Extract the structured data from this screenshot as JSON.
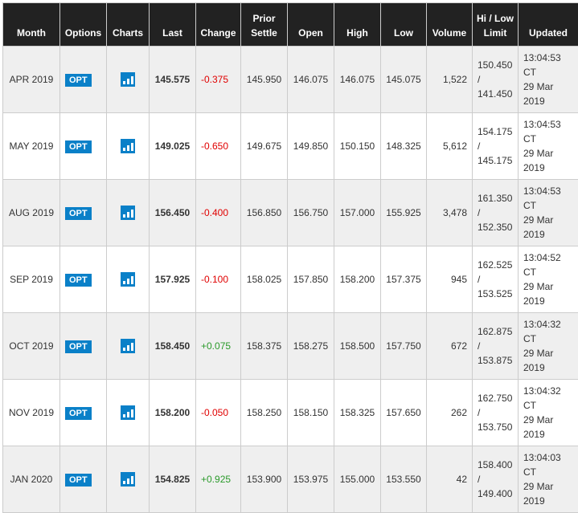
{
  "headers": [
    "Month",
    "Options",
    "Charts",
    "Last",
    "Change",
    "Prior Settle",
    "Open",
    "High",
    "Low",
    "Volume",
    "Hi / Low Limit",
    "Updated"
  ],
  "colors": {
    "negative": "#e00000",
    "positive": "#2a9a2a",
    "accent": "#0a80c8",
    "header_bg": "#222222"
  },
  "rows": [
    {
      "month": "APR 2019",
      "opt": "OPT",
      "last": "145.575",
      "change": "-0.375",
      "prior": "145.950",
      "open": "146.075",
      "high": "146.075",
      "low": "145.075",
      "volume": "1,522",
      "hi": "150.450",
      "sep": "/",
      "lo": "141.450",
      "time": "13:04:53",
      "tz": "CT",
      "date": "29 Mar",
      "year": "2019"
    },
    {
      "month": "MAY 2019",
      "opt": "OPT",
      "last": "149.025",
      "change": "-0.650",
      "prior": "149.675",
      "open": "149.850",
      "high": "150.150",
      "low": "148.325",
      "volume": "5,612",
      "hi": "154.175",
      "sep": "/",
      "lo": "145.175",
      "time": "13:04:53",
      "tz": "CT",
      "date": "29 Mar",
      "year": "2019"
    },
    {
      "month": "AUG 2019",
      "opt": "OPT",
      "last": "156.450",
      "change": "-0.400",
      "prior": "156.850",
      "open": "156.750",
      "high": "157.000",
      "low": "155.925",
      "volume": "3,478",
      "hi": "161.350",
      "sep": "/",
      "lo": "152.350",
      "time": "13:04:53",
      "tz": "CT",
      "date": "29 Mar",
      "year": "2019"
    },
    {
      "month": "SEP 2019",
      "opt": "OPT",
      "last": "157.925",
      "change": "-0.100",
      "prior": "158.025",
      "open": "157.850",
      "high": "158.200",
      "low": "157.375",
      "volume": "945",
      "hi": "162.525",
      "sep": "/",
      "lo": "153.525",
      "time": "13:04:52",
      "tz": "CT",
      "date": "29 Mar",
      "year": "2019"
    },
    {
      "month": "OCT 2019",
      "opt": "OPT",
      "last": "158.450",
      "change": "+0.075",
      "prior": "158.375",
      "open": "158.275",
      "high": "158.500",
      "low": "157.750",
      "volume": "672",
      "hi": "162.875",
      "sep": "/",
      "lo": "153.875",
      "time": "13:04:32",
      "tz": "CT",
      "date": "29 Mar",
      "year": "2019"
    },
    {
      "month": "NOV 2019",
      "opt": "OPT",
      "last": "158.200",
      "change": "-0.050",
      "prior": "158.250",
      "open": "158.150",
      "high": "158.325",
      "low": "157.650",
      "volume": "262",
      "hi": "162.750",
      "sep": "/",
      "lo": "153.750",
      "time": "13:04:32",
      "tz": "CT",
      "date": "29 Mar",
      "year": "2019"
    },
    {
      "month": "JAN 2020",
      "opt": "OPT",
      "last": "154.825",
      "change": "+0.925",
      "prior": "153.900",
      "open": "153.975",
      "high": "155.000",
      "low": "153.550",
      "volume": "42",
      "hi": "158.400",
      "sep": "/",
      "lo": "149.400",
      "time": "13:04:03",
      "tz": "CT",
      "date": "29 Mar",
      "year": "2019"
    }
  ]
}
